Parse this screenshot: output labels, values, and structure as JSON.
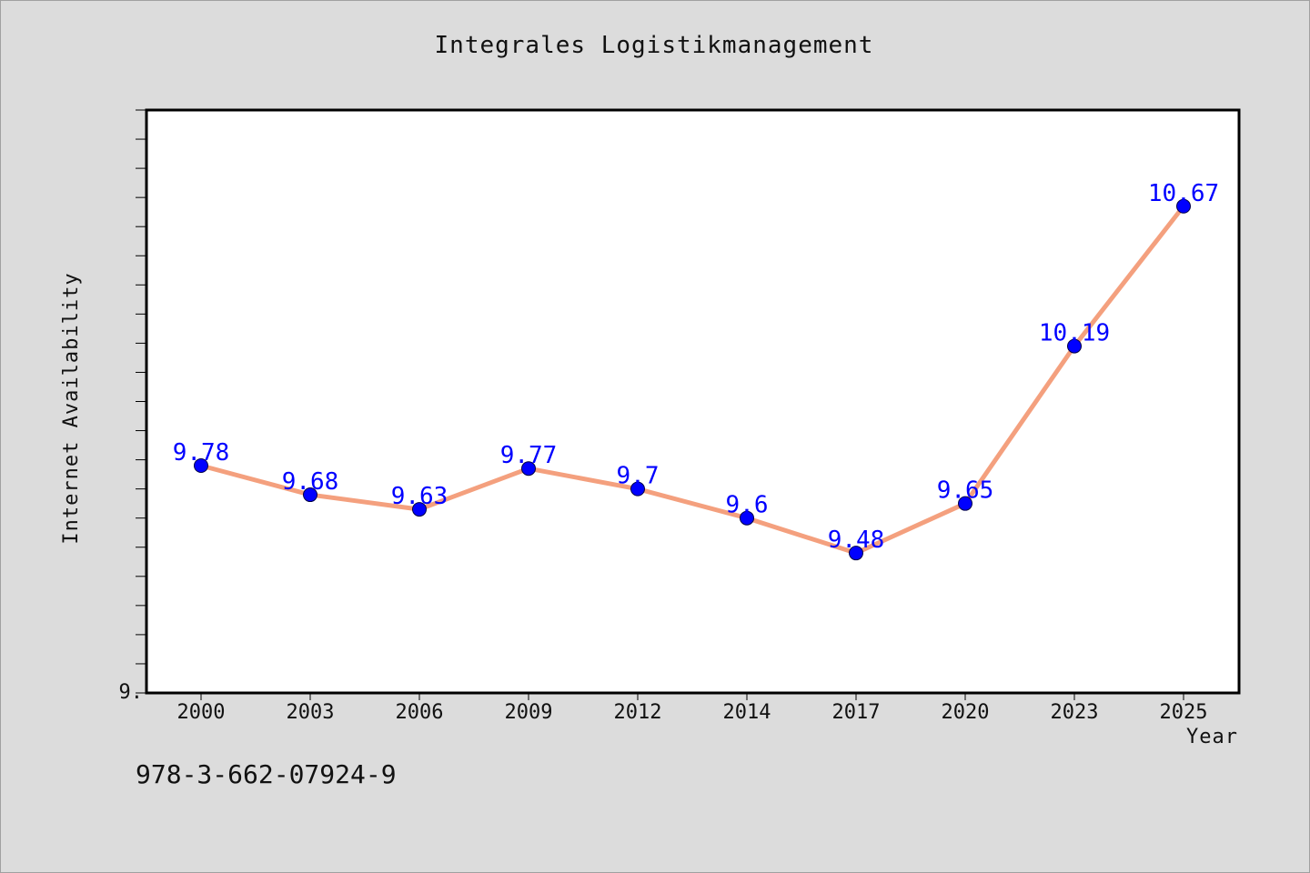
{
  "colors": {
    "line": "#f4a07e",
    "marker": "#0000ff",
    "label": "#0000ff",
    "background": "#dcdcdc",
    "plot_background": "#ffffff"
  },
  "footer_text": "978-3-662-07924-9",
  "chart_data": {
    "type": "line",
    "title": "Integrales Logistikmanagement",
    "xlabel": "Year",
    "ylabel": "Internet Availability",
    "categories": [
      "2000",
      "2003",
      "2006",
      "2009",
      "2012",
      "2014",
      "2017",
      "2020",
      "2023",
      "2025"
    ],
    "series": [
      {
        "values": [
          9.78,
          9.68,
          9.63,
          9.77,
          9.7,
          9.6,
          9.48,
          9.65,
          10.19,
          10.67
        ],
        "labels": [
          "9.78",
          "9.68",
          "9.63",
          "9.77",
          "9.7",
          "9.6",
          "9.48",
          "9.65",
          "10.19",
          "10.67"
        ]
      }
    ],
    "ylim": [
      9.0,
      11.0
    ],
    "y_tick_labels": [
      "9."
    ],
    "grid": false,
    "legend": "none"
  }
}
